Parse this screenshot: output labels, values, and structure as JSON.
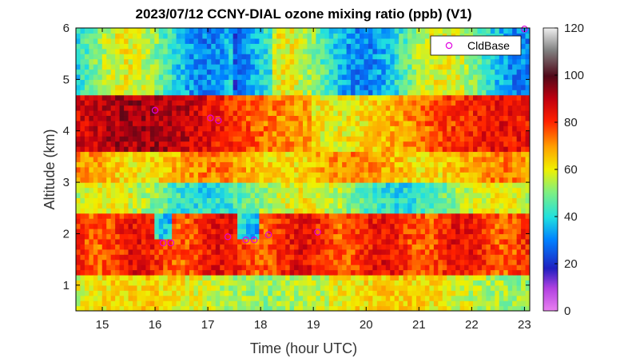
{
  "chart_data": {
    "type": "heatmap",
    "title": "2023/07/12 CCNY-DIAL ozone mixing ratio (ppb) (V1)",
    "xlabel": "Time (hour UTC)",
    "ylabel": "Altitude (km)",
    "xlim": [
      14.5,
      23.1
    ],
    "ylim": [
      0.5,
      6.0
    ],
    "xticks": [
      "15",
      "16",
      "17",
      "18",
      "19",
      "20",
      "21",
      "22",
      "23"
    ],
    "yticks": [
      "1",
      "2",
      "3",
      "4",
      "5",
      "6"
    ],
    "colorbar": {
      "range": [
        0,
        120
      ],
      "ticks": [
        "0",
        "20",
        "40",
        "60",
        "80",
        "100",
        "120"
      ],
      "colormap": "jet with magenta low end and grey high end"
    },
    "legend": {
      "location": "top-right",
      "entries": [
        "CldBase"
      ],
      "marker": "circle",
      "color": "#e000e0"
    },
    "field_description": [
      {
        "altitude_km": [
          0.5,
          1.2
        ],
        "ozone_ppb": "50-65"
      },
      {
        "altitude_km": [
          1.2,
          2.4
        ],
        "ozone_ppb": "70-90"
      },
      {
        "altitude_km": [
          2.4,
          3.0
        ],
        "ozone_ppb": "40-55"
      },
      {
        "altitude_km": [
          3.0,
          3.6
        ],
        "ozone_ppb": "60-75"
      },
      {
        "altitude_km": [
          3.6,
          4.7
        ],
        "ozone_ppb": "65-95"
      },
      {
        "altitude_km": [
          4.7,
          6.0
        ],
        "ozone_ppb": "30-60"
      }
    ],
    "series": [
      {
        "name": "CldBase",
        "points": [
          {
            "x": 16.0,
            "y": 4.4
          },
          {
            "x": 16.15,
            "y": 1.82
          },
          {
            "x": 16.3,
            "y": 1.82
          },
          {
            "x": 17.05,
            "y": 4.25
          },
          {
            "x": 17.2,
            "y": 4.2
          },
          {
            "x": 17.38,
            "y": 1.94
          },
          {
            "x": 17.72,
            "y": 1.88
          },
          {
            "x": 17.88,
            "y": 1.88
          },
          {
            "x": 18.15,
            "y": 1.98
          },
          {
            "x": 19.08,
            "y": 2.03
          },
          {
            "x": 23.0,
            "y": 5.98
          }
        ]
      }
    ]
  }
}
